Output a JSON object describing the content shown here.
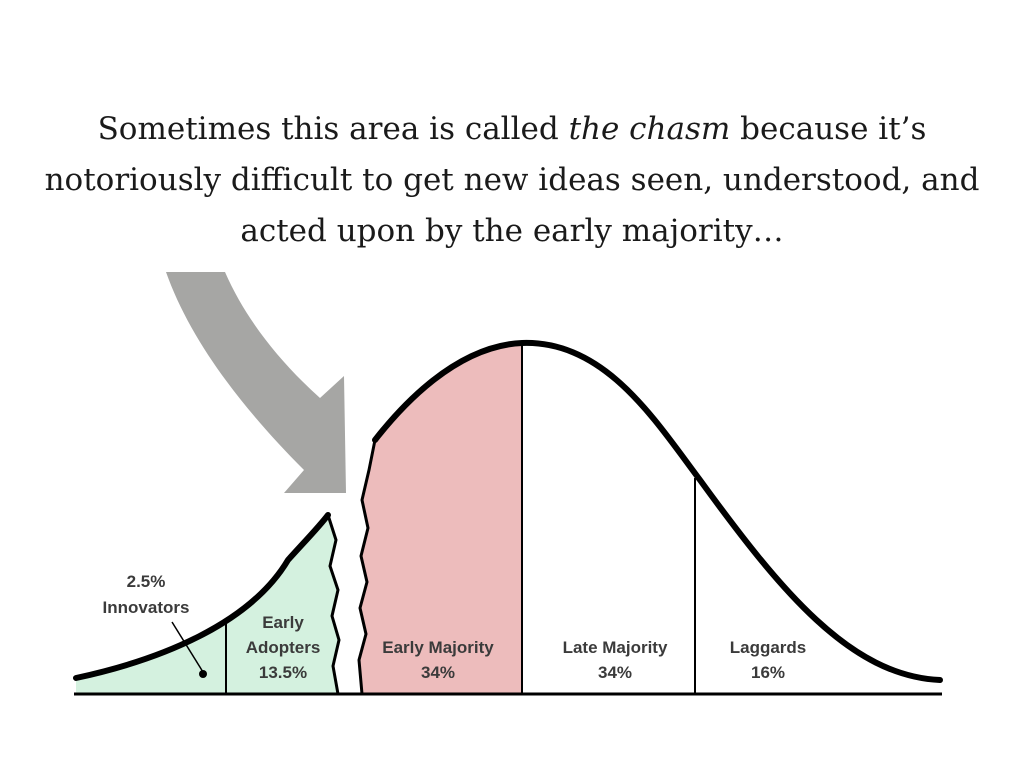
{
  "caption": {
    "part1": "Sometimes this area is called ",
    "emphasis": "the chasm",
    "part2": " because it’s notoriously difficult to get new ideas seen, understood, and acted upon by the early majority…"
  },
  "segments": [
    {
      "name": "Innovators",
      "percent": "2.5%",
      "fill": "#d4f1df"
    },
    {
      "name": "Early Adopters",
      "name_lines": [
        "Early",
        "Adopters"
      ],
      "percent": "13.5%",
      "fill": "#d4f1df"
    },
    {
      "name": "Early Majority",
      "percent": "34%",
      "fill": "#edbcbc"
    },
    {
      "name": "Late Majority",
      "percent": "34%",
      "fill": "#ffffff"
    },
    {
      "name": "Laggards",
      "percent": "16%",
      "fill": "#ffffff"
    }
  ],
  "arrow_color": "#a6a6a4",
  "curve_color": "#000000"
}
